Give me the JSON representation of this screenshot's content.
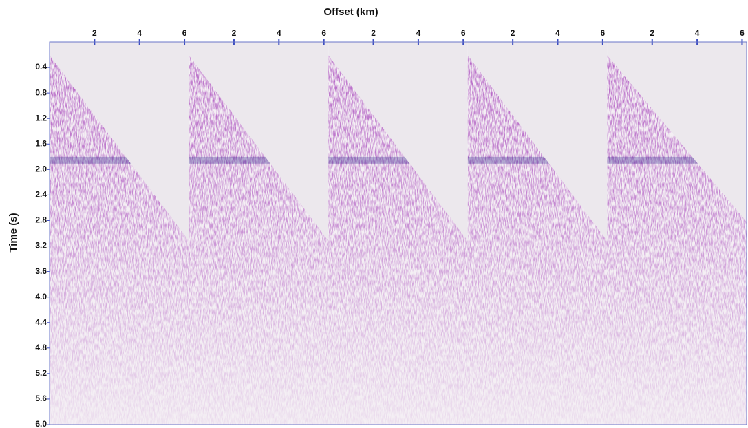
{
  "chart_data": {
    "type": "seismic",
    "xlabel": "Offset (km)",
    "ylabel": "Time (s)",
    "ylim": [
      0,
      6
    ],
    "yticks": [
      0.4,
      0.8,
      1.2,
      1.6,
      {
        "value": 2,
        "label": "2.0"
      },
      2.4,
      2.8,
      3.2,
      3.6,
      {
        "value": 4,
        "label": "4.0"
      },
      4.4,
      4.8,
      5.2,
      5.6,
      {
        "value": 6,
        "label": "6.0"
      }
    ],
    "panels": [
      {
        "xlim": [
          0,
          6.2
        ],
        "xticks": [
          2,
          4,
          6
        ]
      },
      {
        "xlim": [
          0,
          6.2
        ],
        "xticks": [
          2,
          4,
          6
        ]
      },
      {
        "xlim": [
          0,
          6.2
        ],
        "xticks": [
          2,
          4,
          6
        ]
      },
      {
        "xlim": [
          0,
          6.2
        ],
        "xticks": [
          2,
          4,
          6
        ]
      },
      {
        "xlim": [
          0,
          6.2
        ],
        "xticks": [
          2,
          4,
          6
        ]
      }
    ]
  }
}
